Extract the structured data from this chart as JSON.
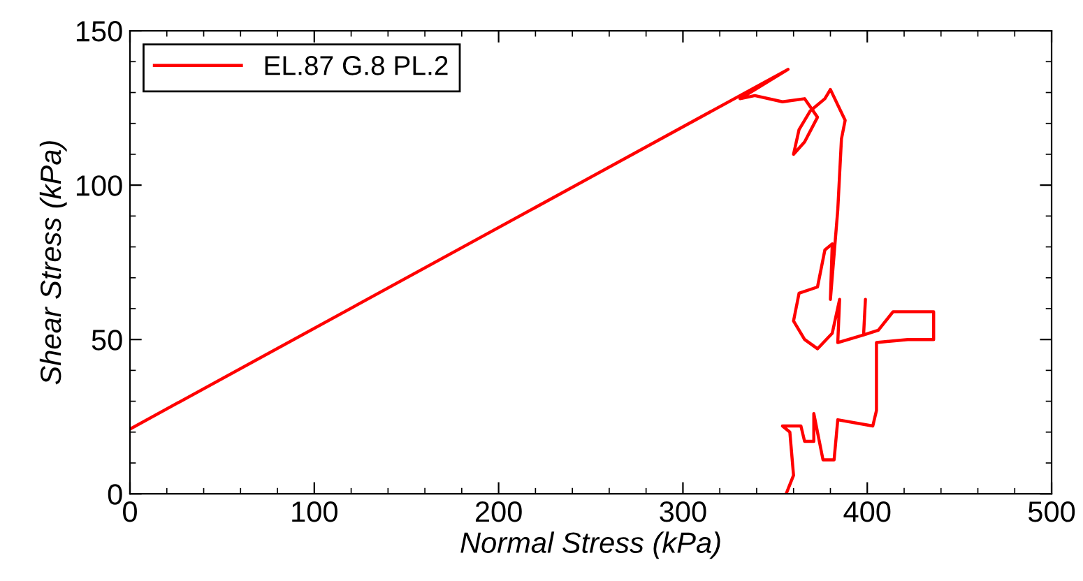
{
  "chart_data": {
    "type": "line",
    "xlabel": "Normal Stress (kPa)",
    "ylabel": "Shear Stress (kPa)",
    "xlim": [
      0,
      500
    ],
    "ylim": [
      0,
      150
    ],
    "xticks": [
      0,
      100,
      200,
      300,
      400,
      500
    ],
    "yticks": [
      0,
      50,
      100,
      150
    ],
    "grid": false,
    "legend": "top left",
    "marker": "none",
    "line_style": "solid",
    "series": [
      {
        "name": "EL.87 G.8 PL.2",
        "color": "#ff0000",
        "x": [
          0,
          357,
          331,
          339,
          354,
          366,
          373,
          366,
          360,
          363,
          369,
          377,
          380,
          384,
          388,
          386,
          384,
          380,
          381,
          377,
          373,
          363,
          360,
          366,
          373,
          381,
          385,
          384,
          398,
          399,
          398,
          406,
          414,
          436,
          436,
          422,
          405,
          405,
          403,
          384,
          382,
          376,
          371,
          371,
          366,
          364,
          356,
          354,
          358,
          360,
          356
        ],
        "values": [
          21,
          137.5,
          128,
          129,
          127,
          128,
          122,
          114,
          110,
          118,
          124,
          128,
          131,
          126,
          121,
          115,
          92,
          63,
          81,
          79,
          67,
          65,
          56,
          50,
          47,
          52,
          63,
          49,
          51.5,
          63,
          51.5,
          53,
          59,
          59,
          50,
          50,
          49,
          27,
          22,
          24,
          11,
          11,
          26,
          17,
          17,
          22,
          22,
          22,
          20,
          6,
          0
        ]
      }
    ]
  }
}
